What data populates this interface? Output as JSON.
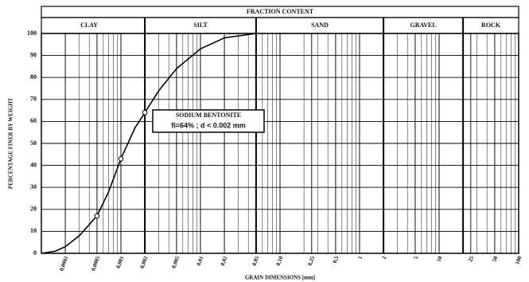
{
  "chart_data": {
    "type": "line",
    "header": "FRACTION CONTENT",
    "fractions": [
      {
        "name": "CLAY",
        "from": 0.0001,
        "to": 0.002
      },
      {
        "name": "SILT",
        "from": 0.002,
        "to": 0.05
      },
      {
        "name": "SAND",
        "from": 0.05,
        "to": 2
      },
      {
        "name": "GRAVEL",
        "from": 2,
        "to": 20
      },
      {
        "name": "ROCK",
        "from": 20,
        "to": 100
      }
    ],
    "xlabel": "GRAIN DIMENSIONS [mm]",
    "ylabel": "PERCENTAGE FINER BY WEIGHT",
    "x": [
      0.0001,
      0.00015,
      0.0002,
      0.0003,
      0.0005,
      0.0007,
      0.001,
      0.0015,
      0.002,
      0.003,
      0.005,
      0.01,
      0.02,
      0.05
    ],
    "values": [
      0,
      1,
      3,
      8,
      17,
      28,
      43,
      57,
      64,
      74,
      84,
      93,
      98,
      100
    ],
    "markers": {
      "x": [
        0.0005,
        0.001,
        0.002
      ],
      "values": [
        17,
        43,
        64
      ]
    },
    "color": "#000000",
    "annotation": [
      "SODIUM BENTONITE",
      "fi=64% ; d < 0.002 mm"
    ],
    "log_x": true,
    "grid": true,
    "xlim": [
      0.0001,
      100
    ],
    "ylim": [
      0,
      100
    ],
    "xticks": [
      {
        "value": 0.0002,
        "label": "0,0002"
      },
      {
        "value": 0.0005,
        "label": "0,0005"
      },
      {
        "value": 0.001,
        "label": "0,001"
      },
      {
        "value": 0.002,
        "label": "0,002"
      },
      {
        "value": 0.005,
        "label": "0,005"
      },
      {
        "value": 0.01,
        "label": "0,01"
      },
      {
        "value": 0.02,
        "label": "0,02"
      },
      {
        "value": 0.05,
        "label": "0,05"
      },
      {
        "value": 0.1,
        "label": "0,10"
      },
      {
        "value": 0.25,
        "label": "0,25"
      },
      {
        "value": 0.5,
        "label": "0,5"
      },
      1,
      2,
      5,
      10,
      25,
      50,
      100
    ],
    "yticks": [
      0,
      10,
      20,
      30,
      40,
      50,
      60,
      70,
      80,
      90,
      100
    ]
  }
}
